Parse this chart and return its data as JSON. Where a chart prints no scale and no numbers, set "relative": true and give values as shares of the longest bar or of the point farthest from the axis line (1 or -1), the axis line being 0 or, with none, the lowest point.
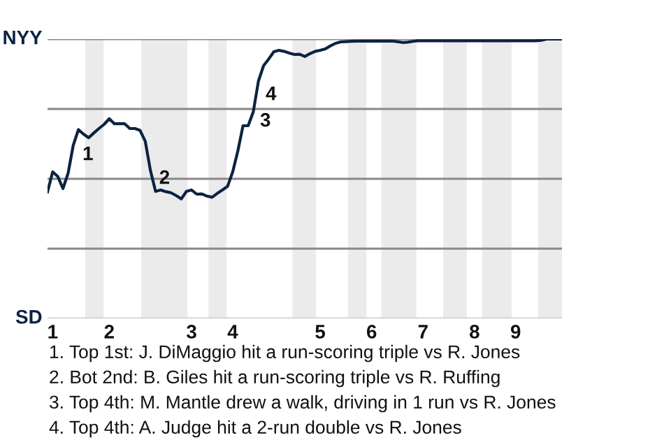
{
  "chart_data": {
    "type": "line",
    "relative": true,
    "categories": [
      null,
      "1",
      null,
      null,
      null,
      null,
      null,
      null,
      null,
      null,
      null,
      null,
      "2",
      null,
      null,
      null,
      null,
      null,
      null,
      null,
      null,
      null,
      null,
      null,
      null,
      null,
      null,
      null,
      "3",
      null,
      null,
      null,
      null,
      null,
      null,
      null,
      "4",
      null,
      null,
      null,
      null,
      null,
      null,
      null,
      null,
      null,
      null,
      null,
      null,
      null,
      null,
      null,
      null,
      "5",
      null,
      null,
      null,
      null,
      null,
      null,
      null,
      null,
      null,
      "6",
      null,
      null,
      null,
      null,
      null,
      null,
      null,
      null,
      null,
      "7",
      null,
      null,
      null,
      null,
      null,
      null,
      null,
      null,
      null,
      "8",
      null,
      null,
      null,
      null,
      null,
      null,
      null,
      "9",
      null,
      null,
      null,
      null,
      null,
      null,
      null,
      null,
      null
    ],
    "series": [
      {
        "color": "#0c2340",
        "values": [
          0.453,
          0.525,
          0.508,
          0.465,
          0.52,
          0.62,
          0.676,
          0.66,
          0.647,
          0.664,
          0.68,
          0.695,
          0.715,
          0.697,
          0.697,
          0.697,
          0.68,
          0.68,
          0.673,
          0.634,
          0.53,
          0.455,
          0.46,
          0.454,
          0.45,
          0.44,
          0.428,
          0.455,
          0.46,
          0.445,
          0.446,
          0.438,
          0.434,
          0.448,
          0.46,
          0.473,
          0.525,
          0.6,
          0.69,
          0.69,
          0.74,
          0.85,
          0.905,
          0.929,
          0.955,
          0.96,
          0.956,
          0.95,
          0.945,
          0.946,
          0.938,
          0.948,
          0.956,
          0.96,
          0.965,
          0.976,
          0.985,
          0.99,
          0.991,
          0.992,
          0.993,
          0.993,
          0.993,
          0.993,
          0.993,
          0.993,
          0.993,
          0.993,
          0.991,
          0.988,
          0.989,
          0.992,
          0.994,
          0.994,
          0.994,
          0.994,
          0.994,
          0.994,
          0.994,
          0.994,
          0.994,
          0.994,
          0.994,
          0.994,
          0.994,
          0.994,
          0.994,
          0.994,
          0.994,
          0.994,
          0.994,
          0.994,
          0.994,
          0.994,
          0.994,
          0.994,
          0.996,
          1,
          1,
          1,
          1
        ]
      }
    ],
    "grid": "y",
    "marker": "none",
    "annotations": [
      "NYY",
      "SD",
      "1",
      "2",
      "3",
      "4",
      "1. Top 1st: J. DiMaggio hit a run-scoring triple vs R. Jones",
      "2. Bot 2nd: B. Giles hit a run-scoring triple vs R. Ruffing",
      "3. Top 4th: M. Mantle drew a walk, driving in 1 run vs R. Jones",
      "4. Top 4th: A. Judge hit a 2-run double vs R. Jones"
    ]
  }
}
